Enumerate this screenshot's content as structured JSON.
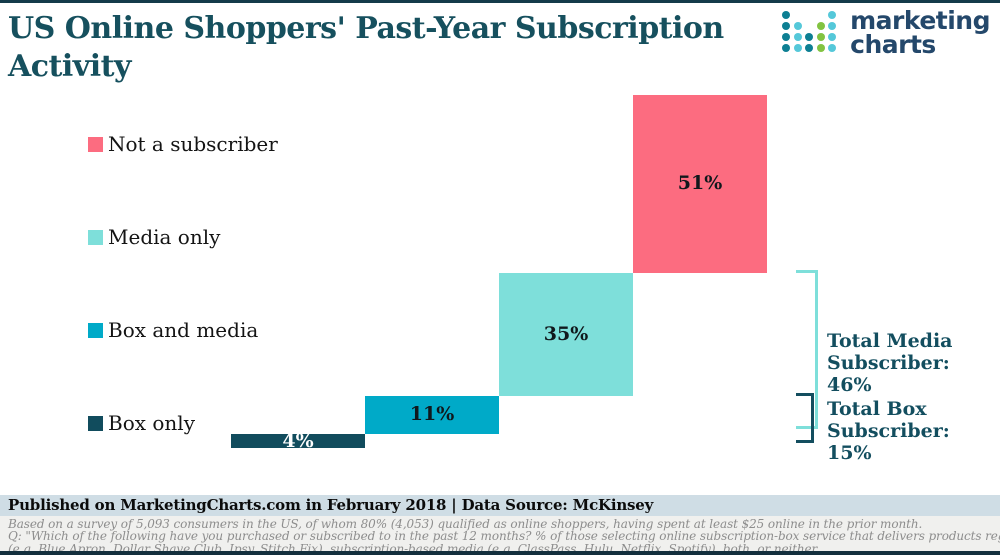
{
  "header": {
    "title": "US Online Shoppers' Past-Year Subscription Activity",
    "logo": {
      "line1": "marketing",
      "line2": "charts"
    }
  },
  "logo_dots": {
    "pattern": [
      [
        1,
        0,
        0,
        0,
        2
      ],
      [
        1,
        2,
        0,
        3,
        2
      ],
      [
        1,
        2,
        1,
        3,
        2
      ],
      [
        1,
        2,
        1,
        3,
        2
      ]
    ],
    "colors": {
      "1": "#0d7f93",
      "2": "#55c8d9",
      "3": "#82c341"
    }
  },
  "legend": [
    {
      "label": "Not a subscriber",
      "color": "#fc6c80"
    },
    {
      "label": "Media only",
      "color": "#7edfda"
    },
    {
      "label": "Box and media",
      "color": "#00aac8"
    },
    {
      "label": "Box only",
      "color": "#114c5d"
    }
  ],
  "chart_data": {
    "type": "bar",
    "subtype": "waterfall-stacked",
    "title": "US Online Shoppers' Past-Year Subscription Activity",
    "categories": [
      "Box only",
      "Box and media",
      "Media only",
      "Not a subscriber"
    ],
    "values": [
      4,
      11,
      35,
      51
    ],
    "labels": [
      "4%",
      "11%",
      "35%",
      "51%"
    ],
    "colors": [
      "#114c5d",
      "#00aac8",
      "#7edfda",
      "#fc6c80"
    ],
    "label_colors": [
      "#ffffff",
      "#10181c",
      "#10181c",
      "#10181c"
    ],
    "unit": "%",
    "xlabel": "",
    "ylabel": "",
    "grid": false,
    "legend_position": "left",
    "totals": [
      {
        "name": "Total Media Subscriber",
        "value": 46,
        "covers": [
          "Box and media",
          "Media only"
        ]
      },
      {
        "name": "Total Box Subscriber",
        "value": 15,
        "covers": [
          "Box only",
          "Box and media"
        ]
      }
    ]
  },
  "annotations": {
    "total_media": "Total Media\nSubscriber: 46%",
    "total_box": "Total Box\nSubscriber: 15%"
  },
  "footer": {
    "published": "Published on MarketingCharts.com in February 2018 | Data Source: McKinsey",
    "notes": [
      "Based on a survey of 5,093 consumers in the US, of whom 80% (4,053) qualified as online shoppers, having spent at least $25 online in the prior month.",
      "Q: \"Which of the following have you purchased or subscribed to in the past 12 months? % of those selecting online subscription-box service that delivers products regularly",
      "(e.g. Blue Apron, Dollar Shave Club, Ipsy, Stitch Fix), subscription-based media (e.g. ClassPass, Hulu, Netflix, Spotify), both, or neither."
    ]
  }
}
